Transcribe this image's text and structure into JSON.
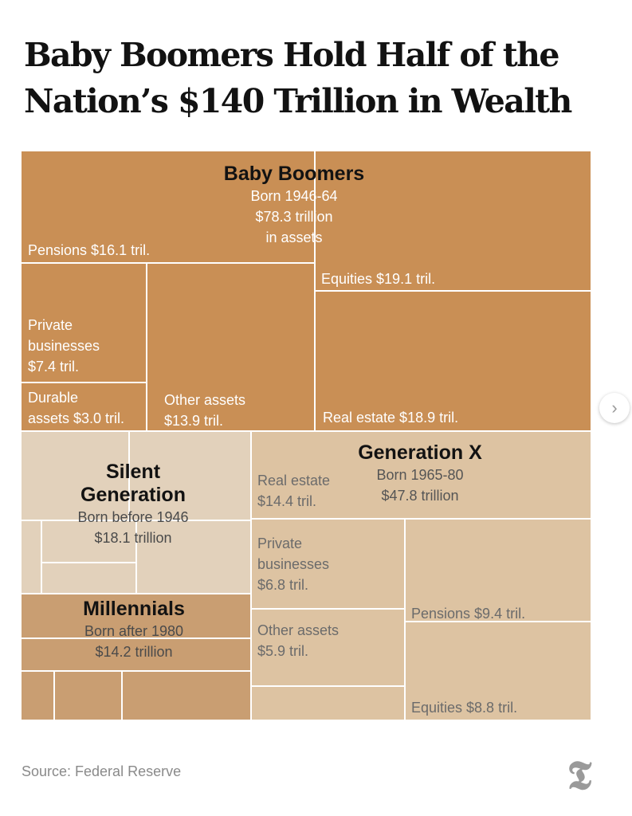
{
  "title_lines": [
    "Baby Boomers Hold Half of the",
    "Nation’s $140 Trillion in Wealth"
  ],
  "source": "Source: Federal Reserve",
  "logo_glyph": "𝕿",
  "next_icon": "›",
  "colors": {
    "boomers": "#c98f55",
    "silent": "#e2d1bb",
    "millennials": "#c99e72",
    "genx": "#ddc3a2",
    "divider": "#ffffff",
    "text_light": "#ffffff",
    "text_dark": "#6b6b6b"
  },
  "chart_data": {
    "type": "treemap",
    "title": "Baby Boomers Hold Half of the Nation’s $140 Trillion in Wealth",
    "unit": "trillion dollars",
    "groups": [
      {
        "key": "boomers",
        "name": "Baby Boomers",
        "born": "Born 1946-64",
        "total_lines": [
          "$78.3 trillion",
          "in assets"
        ],
        "total": 78.3,
        "assets": [
          {
            "name": "Pensions",
            "value": 16.1,
            "label_lines": [
              "Pensions $16.1 tril."
            ]
          },
          {
            "name": "Equities",
            "value": 19.1,
            "label_lines": [
              "Equities $19.1 tril."
            ]
          },
          {
            "name": "Private businesses",
            "value": 7.4,
            "label_lines": [
              "Private",
              "businesses",
              "$7.4 tril."
            ]
          },
          {
            "name": "Durable assets",
            "value": 3.0,
            "label_lines": [
              "Durable",
              "assets $3.0 tril."
            ]
          },
          {
            "name": "Other assets",
            "value": 13.9,
            "label_lines": [
              "Other assets",
              "$13.9 tril."
            ]
          },
          {
            "name": "Real estate",
            "value": 18.9,
            "label_lines": [
              "Real estate $18.9 tril."
            ]
          }
        ]
      },
      {
        "key": "silent",
        "name": "Silent Generation",
        "name_lines": [
          "Silent",
          "Generation"
        ],
        "born": "Born before 1946",
        "total_lines": [
          "$18.1 trillion"
        ],
        "total": 18.1,
        "assets": []
      },
      {
        "key": "millennials",
        "name": "Millennials",
        "born": "Born after 1980",
        "total_lines": [
          "$14.2 trillion"
        ],
        "total": 14.2,
        "assets": []
      },
      {
        "key": "genx",
        "name": "Generation X",
        "born": "Born 1965-80",
        "total_lines": [
          "$47.8 trillion"
        ],
        "total": 47.8,
        "assets": [
          {
            "name": "Real estate",
            "value": 14.4,
            "label_lines": [
              "Real estate",
              "$14.4 tril."
            ]
          },
          {
            "name": "Private businesses",
            "value": 6.8,
            "label_lines": [
              "Private",
              "businesses",
              "$6.8 tril."
            ]
          },
          {
            "name": "Other assets",
            "value": 5.9,
            "label_lines": [
              "Other assets",
              "$5.9 tril."
            ]
          },
          {
            "name": "Pensions",
            "value": 9.4,
            "label_lines": [
              "Pensions $9.4 tril."
            ]
          },
          {
            "name": "Equities",
            "value": 8.8,
            "label_lines": [
              "Equities $8.8 tril."
            ]
          }
        ]
      }
    ]
  }
}
